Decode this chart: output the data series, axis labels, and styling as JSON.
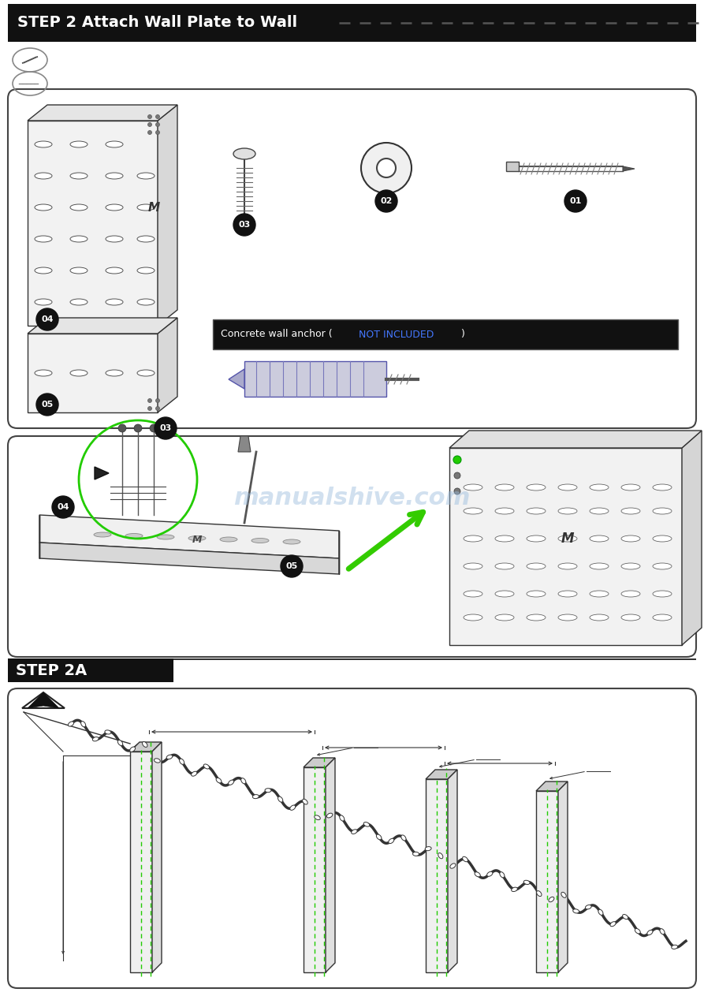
{
  "bg_color": "#ffffff",
  "page_width": 8.93,
  "page_height": 12.63,
  "dpi": 100,
  "step2_header": "STEP 2 Attach Wall Plate to Wall",
  "step2a_header": "STEP 2A",
  "header_bg": "#111111",
  "header_text_color": "#ffffff",
  "header_fontsize": 12,
  "watermark_text": "manualshive.com",
  "watermark_color": "#99bbdd",
  "watermark_alpha": 0.45,
  "green_arrow_color": "#33cc00",
  "box_ec": "#444444",
  "concrete_label": "Concrete wall anchor (NOT INCLUDED)",
  "concrete_blue": "#4477ff"
}
